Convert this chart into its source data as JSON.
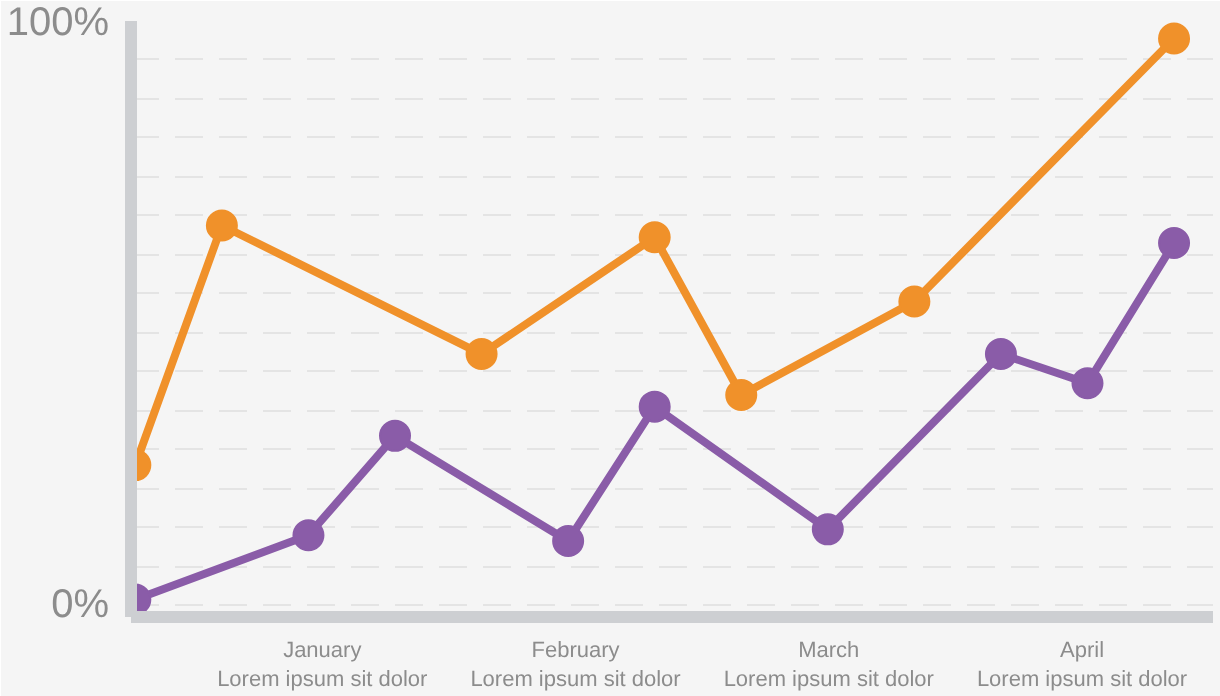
{
  "chart_data": {
    "type": "line",
    "marker": "circle",
    "line_style": "solid",
    "grid": "y",
    "categories": [
      null,
      null,
      null,
      null,
      null,
      null,
      null,
      null,
      null,
      null,
      null,
      null,
      null
    ],
    "ylim": [
      -2,
      100
    ],
    "yticks": [
      {
        "value": 0,
        "label": "0%"
      },
      {
        "value": 6.67,
        "label": null
      },
      {
        "value": 13.33,
        "label": null
      },
      {
        "value": 20,
        "label": null
      },
      {
        "value": 26.67,
        "label": null
      },
      {
        "value": 33.33,
        "label": null
      },
      {
        "value": 40,
        "label": null
      },
      {
        "value": 46.67,
        "label": null
      },
      {
        "value": 53.33,
        "label": null
      },
      {
        "value": 60,
        "label": null
      },
      {
        "value": 66.67,
        "label": null
      },
      {
        "value": 73.33,
        "label": null
      },
      {
        "value": 80,
        "label": null
      },
      {
        "value": 86.67,
        "label": null
      },
      {
        "value": 93.33,
        "label": null
      },
      {
        "value": 100,
        "label": "100%"
      }
    ],
    "annotations": [
      "January\nLorem ipsum sit dolor",
      "February\nLorem ipsum sit dolor",
      "March\nLorem ipsum sit dolor",
      "April\nLorem ipsum sit dolor"
    ],
    "series": [
      {
        "color": "#f0912a",
        "values": [
          24,
          65,
          null,
          null,
          43,
          null,
          63,
          36,
          null,
          52,
          null,
          null,
          97
        ]
      },
      {
        "color": "#8a5ca8",
        "values": [
          1,
          null,
          12,
          29,
          null,
          11,
          34,
          null,
          13,
          null,
          43,
          38,
          62
        ]
      }
    ]
  }
}
